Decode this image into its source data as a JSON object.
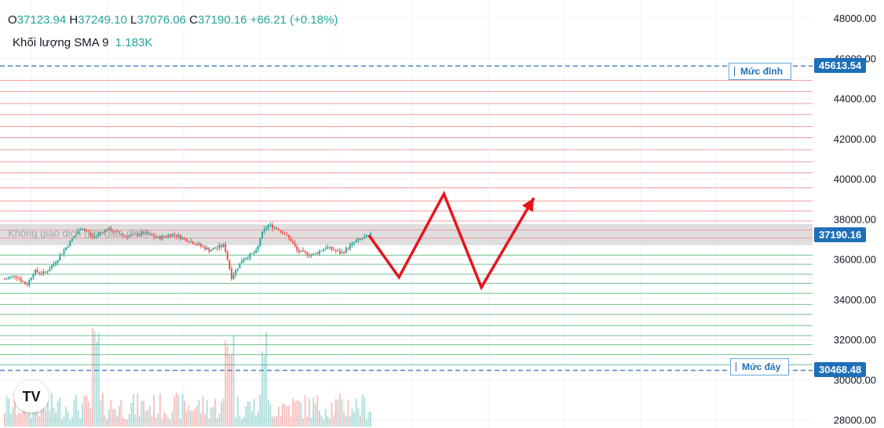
{
  "legend": {
    "o_label": "O",
    "o_value": "37123.94",
    "h_label": "H",
    "h_value": "37249.10",
    "l_label": "L",
    "l_value": "37076.06",
    "c_label": "C",
    "c_value": "37190.16",
    "change": "+66.21 (+0.18%)",
    "volume_label": "Khối lượng SMA 9",
    "volume_value": "1.183K"
  },
  "levels": {
    "top_label": "Mức đỉnh",
    "top_value": "45613.54",
    "bottom_label": "Mức đáy",
    "bottom_value": "30468.48"
  },
  "current_price": "37190.16",
  "no_trade_label": "Không giao dịch (phí giao dịch)",
  "logo_text": "TV",
  "colors": {
    "up": "#26a69a",
    "down": "#ef5350",
    "resistance": "#f29c9c",
    "support": "#6fc08a",
    "level_dash": "#4a86c8",
    "arrow": "#e8141c",
    "price_tag": "#1e6fb8",
    "current_tag": "#1e6fb8"
  },
  "chart_data": {
    "type": "candlestick",
    "y_ticks": [
      "48000.00",
      "46000.00",
      "44000.00",
      "42000.00",
      "40000.00",
      "38000.00",
      "36000.00",
      "34000.00",
      "32000.00",
      "30000.00",
      "28000.00"
    ],
    "ylim": [
      27600,
      48900
    ],
    "top_level": 45613.54,
    "bottom_level": 30468.48,
    "no_trade_zone": [
      36700,
      37750
    ],
    "resistance_lines": [
      37050,
      37450,
      37900,
      38400,
      38900,
      39550,
      40300,
      40850,
      41450,
      42050,
      42600,
      43200,
      43750,
      44350,
      44900
    ],
    "support_lines": [
      36200,
      35750,
      35250,
      34800,
      34300,
      33750,
      33250,
      32700,
      32200,
      31750,
      31250,
      30750
    ],
    "price_path": [
      [
        0,
        35000
      ],
      [
        0.03,
        35200
      ],
      [
        0.06,
        34700
      ],
      [
        0.08,
        35400
      ],
      [
        0.11,
        35300
      ],
      [
        0.14,
        35900
      ],
      [
        0.18,
        36900
      ],
      [
        0.21,
        37600
      ],
      [
        0.24,
        37100
      ],
      [
        0.28,
        37500
      ],
      [
        0.33,
        37150
      ],
      [
        0.38,
        37300
      ],
      [
        0.42,
        37050
      ],
      [
        0.46,
        37250
      ],
      [
        0.52,
        36800
      ],
      [
        0.56,
        36450
      ],
      [
        0.6,
        36700
      ],
      [
        0.62,
        35100
      ],
      [
        0.65,
        36000
      ],
      [
        0.69,
        36400
      ],
      [
        0.7,
        37200
      ],
      [
        0.72,
        37700
      ],
      [
        0.75,
        37500
      ],
      [
        0.78,
        37000
      ],
      [
        0.8,
        36400
      ],
      [
        0.84,
        36200
      ],
      [
        0.88,
        36600
      ],
      [
        0.92,
        36300
      ],
      [
        0.96,
        36900
      ],
      [
        1,
        37190
      ]
    ],
    "projection_path": [
      [
        0,
        37190
      ],
      [
        0.12,
        35100
      ],
      [
        0.3,
        39250
      ],
      [
        0.45,
        34600
      ],
      [
        0.66,
        39050
      ]
    ]
  }
}
